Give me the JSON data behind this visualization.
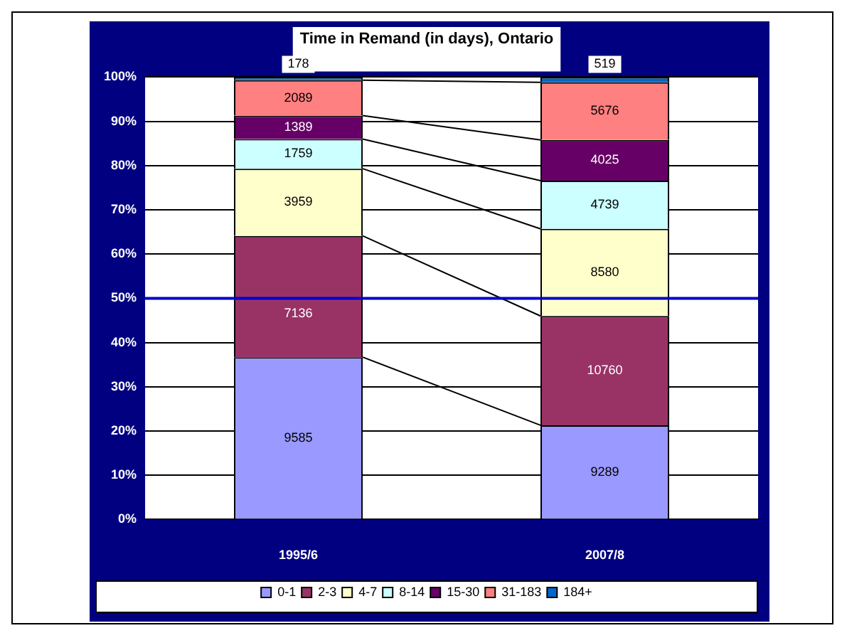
{
  "chart_data": {
    "type": "bar",
    "title": "Time in Remand (in days), Ontario",
    "stacked": true,
    "categories": [
      "1995/6",
      "2007/8"
    ],
    "series": [
      {
        "name": "0-1",
        "color": "#9999ff",
        "values": [
          36.7,
          21.3
        ]
      },
      {
        "name": "2-3",
        "color": "#993366",
        "values": [
          27.4,
          24.7
        ]
      },
      {
        "name": "4-7",
        "color": "#ffffcc",
        "values": [
          15.2,
          19.7
        ]
      },
      {
        "name": "8-14",
        "color": "#ccffff",
        "values": [
          6.7,
          10.9
        ]
      },
      {
        "name": "15-30",
        "color": "#660066",
        "values": [
          5.3,
          9.2
        ]
      },
      {
        "name": "31-183",
        "color": "#ff8080",
        "values": [
          8.0,
          13.0
        ]
      },
      {
        "name": "184+",
        "color": "#0066cc",
        "values": [
          0.7,
          1.2
        ]
      }
    ],
    "annotations": [
      "9585",
      "9289",
      "7136",
      "10760",
      "3959",
      "8580",
      "1759",
      "4739",
      "1389",
      "4025",
      "2089",
      "5676",
      "178",
      "519"
    ],
    "ylim": [
      0,
      100
    ],
    "yticks": [
      {
        "value": 0,
        "label": "0%"
      },
      {
        "value": 10,
        "label": "10%"
      },
      {
        "value": 20,
        "label": "20%"
      },
      {
        "value": 30,
        "label": "30%"
      },
      {
        "value": 40,
        "label": "40%"
      },
      {
        "value": 50,
        "label": "50%"
      },
      {
        "value": 60,
        "label": "60%"
      },
      {
        "value": 70,
        "label": "70%"
      },
      {
        "value": 80,
        "label": "80%"
      },
      {
        "value": 90,
        "label": "90%"
      },
      {
        "value": 100,
        "label": "100%"
      }
    ],
    "ref_lines": [
      {
        "axis": "y",
        "value": 50,
        "color": "#0000cc"
      }
    ],
    "grid": "y",
    "legend": "bottom"
  }
}
